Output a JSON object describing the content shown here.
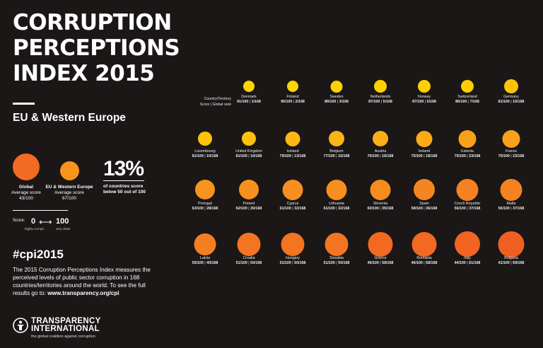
{
  "title": {
    "line1": "CORRUPTION",
    "line2": "PERCEPTIONS",
    "line3": "INDEX 2015"
  },
  "region": "EU & Western Europe",
  "legend": {
    "global": {
      "label": "Global",
      "sub": "Average score",
      "value": "43/100",
      "color": "#f36a22"
    },
    "regional": {
      "label": "EU & Western Europe",
      "sub": "Average score",
      "value": "67/100",
      "color": "#f7941d"
    }
  },
  "stat": {
    "percent": "13%",
    "caption_line1": "of countries score",
    "caption_line2": "below 50 out of 100"
  },
  "scale": {
    "label": "Score:",
    "min": "0",
    "max": "100",
    "low_label": "highly corrupt",
    "high_label": "very clean"
  },
  "hashtag": "#cpi2015",
  "description": "The 2015 Corruption Perceptions Index measures the perceived levels of public sector corruption in 168 countries/territories around the world. To see the full results go to: ",
  "link": "www.transparency.org/cpi",
  "logo": {
    "line1": "TRANSPARENCY",
    "line2": "INTERNATIONAL",
    "tagline": "the global coalition against corruption"
  },
  "grid_header": {
    "line1": "Country/Territory",
    "line2": "Score | Global rank"
  },
  "countries": [
    {
      "name": "Denmark",
      "score": "91/100",
      "rank": "1/168",
      "color": "#ffd400"
    },
    {
      "name": "Finland",
      "score": "90/100",
      "rank": "2/168",
      "color": "#ffd400"
    },
    {
      "name": "Sweden",
      "score": "89/100",
      "rank": "3/168",
      "color": "#ffd200"
    },
    {
      "name": "Netherlands",
      "score": "87/100",
      "rank": "5/168",
      "color": "#ffd000"
    },
    {
      "name": "Norway",
      "score": "87/100",
      "rank": "5/168",
      "color": "#ffd000"
    },
    {
      "name": "Switzerland",
      "score": "86/100",
      "rank": "7/168",
      "color": "#ffcd00"
    },
    {
      "name": "Germany",
      "score": "81/100",
      "rank": "10/168",
      "color": "#ffc20a"
    },
    {
      "name": "Luxembourg",
      "score": "81/100",
      "rank": "10/168",
      "color": "#ffc20a"
    },
    {
      "name": "United Kingdom",
      "score": "81/100",
      "rank": "10/168",
      "color": "#ffc20a"
    },
    {
      "name": "Iceland",
      "score": "79/100",
      "rank": "13/168",
      "color": "#fdb813"
    },
    {
      "name": "Belgium",
      "score": "77/100",
      "rank": "15/168",
      "color": "#fcb316"
    },
    {
      "name": "Austria",
      "score": "76/100",
      "rank": "16/168",
      "color": "#fbae17"
    },
    {
      "name": "Ireland",
      "score": "75/100",
      "rank": "18/168",
      "color": "#fbab18"
    },
    {
      "name": "Estonia",
      "score": "70/100",
      "rank": "23/168",
      "color": "#f9a11b"
    },
    {
      "name": "France",
      "score": "70/100",
      "rank": "23/168",
      "color": "#f9a11b"
    },
    {
      "name": "Portugal",
      "score": "63/100",
      "rank": "28/168",
      "color": "#f7931e"
    },
    {
      "name": "Poland",
      "score": "62/100",
      "rank": "30/168",
      "color": "#f7911e"
    },
    {
      "name": "Cyprus",
      "score": "61/100",
      "rank": "32/168",
      "color": "#f68f1f"
    },
    {
      "name": "Lithuania",
      "score": "61/100",
      "rank": "32/168",
      "color": "#f68f1f"
    },
    {
      "name": "Slovenia",
      "score": "60/100",
      "rank": "35/168",
      "color": "#f68c1f"
    },
    {
      "name": "Spain",
      "score": "58/100",
      "rank": "36/168",
      "color": "#f58520"
    },
    {
      "name": "Czech Republic",
      "score": "56/100",
      "rank": "37/168",
      "color": "#f58220"
    },
    {
      "name": "Malta",
      "score": "56/100",
      "rank": "37/168",
      "color": "#f58220"
    },
    {
      "name": "Latvia",
      "score": "55/100",
      "rank": "40/168",
      "color": "#f47f21"
    },
    {
      "name": "Croatia",
      "score": "51/100",
      "rank": "50/168",
      "color": "#f37521"
    },
    {
      "name": "Hungary",
      "score": "51/100",
      "rank": "50/168",
      "color": "#f37521"
    },
    {
      "name": "Slovakia",
      "score": "51/100",
      "rank": "50/168",
      "color": "#f37521"
    },
    {
      "name": "Greece",
      "score": "46/100",
      "rank": "58/168",
      "color": "#f26922"
    },
    {
      "name": "Romania",
      "score": "46/100",
      "rank": "58/168",
      "color": "#f26922"
    },
    {
      "name": "Italy",
      "score": "44/100",
      "rank": "61/168",
      "color": "#f16422"
    },
    {
      "name": "Bulgaria",
      "score": "41/100",
      "rank": "69/168",
      "color": "#f05f22"
    }
  ]
}
